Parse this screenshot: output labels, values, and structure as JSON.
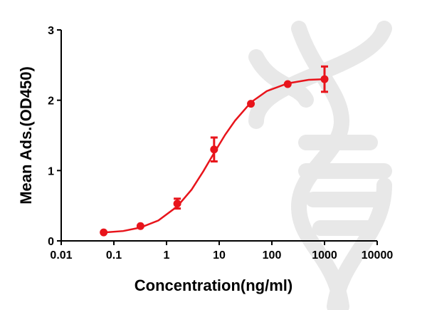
{
  "chart_data": {
    "type": "scatter",
    "xlabel": "Concentration(ng/ml)",
    "ylabel": "Mean Ads.(OD450)",
    "xscale": "log",
    "xlim": [
      0.01,
      10000
    ],
    "xticks": [
      0.01,
      0.1,
      1,
      10,
      100,
      1000,
      10000
    ],
    "ylim": [
      0,
      3
    ],
    "yticks": [
      0,
      1,
      2,
      3
    ],
    "series": [
      {
        "color": "#e8141b",
        "x": [
          0.064,
          0.32,
          1.6,
          8,
          40,
          200,
          1000
        ],
        "values": [
          0.12,
          0.21,
          0.53,
          1.3,
          1.95,
          2.23,
          2.3
        ],
        "errors": [
          null,
          null,
          0.07,
          0.17,
          null,
          null,
          0.18
        ]
      }
    ],
    "fit": {
      "color": "#e8141b",
      "x": [
        0.064,
        0.15,
        0.32,
        0.7,
        1.6,
        3,
        5,
        8,
        13,
        20,
        40,
        80,
        200,
        500,
        1000
      ],
      "values": [
        0.119,
        0.14,
        0.19,
        0.29,
        0.49,
        0.73,
        0.99,
        1.25,
        1.51,
        1.71,
        1.97,
        2.13,
        2.24,
        2.29,
        2.3
      ]
    }
  }
}
